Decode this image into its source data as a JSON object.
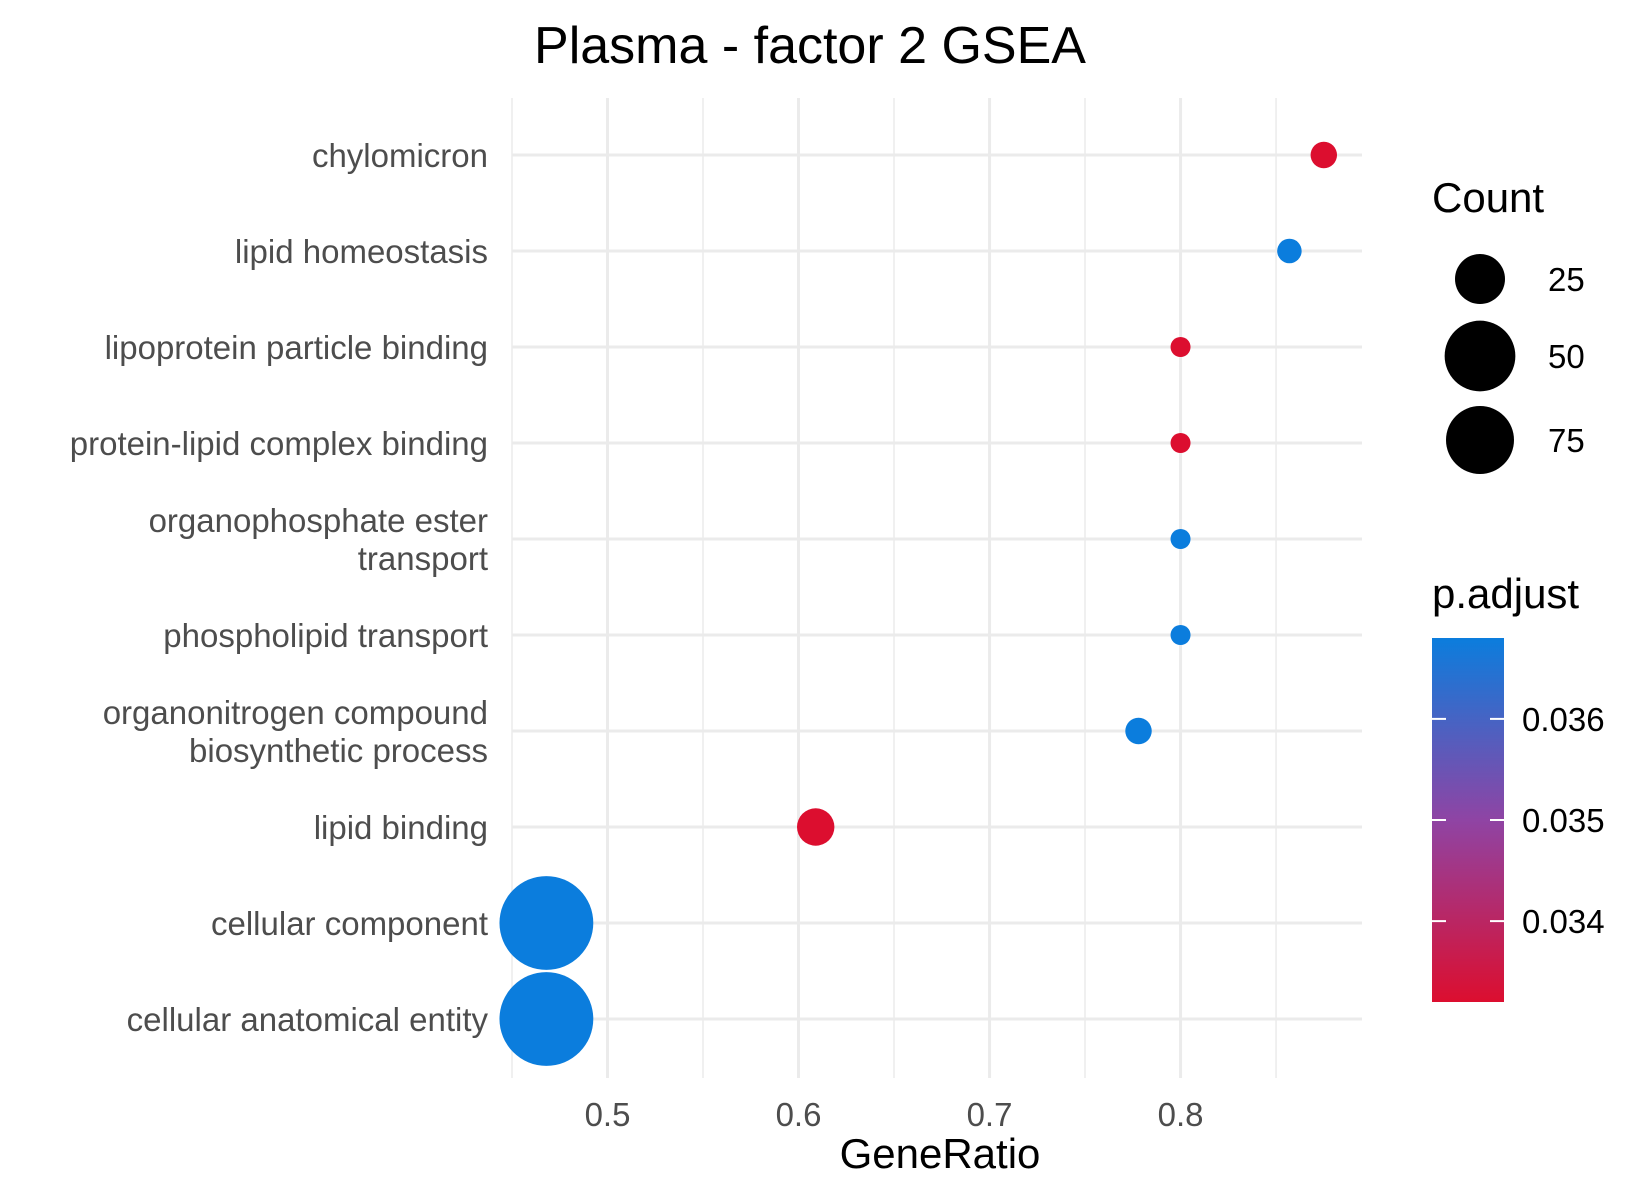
{
  "chart_data": {
    "type": "scatter",
    "title": "Plasma - factor 2 GSEA",
    "xlabel": "GeneRatio",
    "ylabel": "",
    "xlim": [
      0.45,
      0.895
    ],
    "xticks": [
      0.5,
      0.6,
      0.7,
      0.8
    ],
    "xtick_labels": [
      "0.5",
      "0.6",
      "0.7",
      "0.8"
    ],
    "grid": true,
    "categories": [
      [
        "chylomicron"
      ],
      [
        "lipid homeostasis"
      ],
      [
        "lipoprotein particle binding"
      ],
      [
        "protein-lipid complex binding"
      ],
      [
        "organophosphate ester",
        "transport"
      ],
      [
        "phospholipid transport"
      ],
      [
        "organonitrogen compound",
        "biosynthetic process"
      ],
      [
        "lipid binding"
      ],
      [
        "cellular component"
      ],
      [
        "cellular anatomical entity"
      ]
    ],
    "points": [
      {
        "term": "chylomicron",
        "gene_ratio": 0.875,
        "count": 7,
        "p_adjust": 0.0332
      },
      {
        "term": "lipid homeostasis",
        "gene_ratio": 0.857,
        "count": 6,
        "p_adjust": 0.0368
      },
      {
        "term": "lipoprotein particle binding",
        "gene_ratio": 0.8,
        "count": 4,
        "p_adjust": 0.0332
      },
      {
        "term": "protein-lipid complex binding",
        "gene_ratio": 0.8,
        "count": 4,
        "p_adjust": 0.0332
      },
      {
        "term": "organophosphate ester transport",
        "gene_ratio": 0.8,
        "count": 4,
        "p_adjust": 0.0368
      },
      {
        "term": "phospholipid transport",
        "gene_ratio": 0.8,
        "count": 4,
        "p_adjust": 0.0368
      },
      {
        "term": "organonitrogen compound biosynthetic process",
        "gene_ratio": 0.778,
        "count": 7,
        "p_adjust": 0.0368
      },
      {
        "term": "lipid binding",
        "gene_ratio": 0.609,
        "count": 14,
        "p_adjust": 0.0332
      },
      {
        "term": "cellular component",
        "gene_ratio": 0.468,
        "count": 88,
        "p_adjust": 0.0368
      },
      {
        "term": "cellular anatomical entity",
        "gene_ratio": 0.468,
        "count": 88,
        "p_adjust": 0.0368
      }
    ],
    "size_legend": {
      "title": "Count",
      "breaks": [
        25,
        50,
        75
      ],
      "labels": [
        "25",
        "50",
        "75"
      ]
    },
    "color_legend": {
      "title": "p.adjust",
      "min": 0.0332,
      "max": 0.0368,
      "breaks": [
        0.036,
        0.035,
        0.034
      ],
      "labels": [
        "0.036",
        "0.035",
        "0.034"
      ],
      "low_color": "#dc0e2f",
      "mid_color": "#8f44a4",
      "high_color": "#0b7ddd"
    }
  }
}
